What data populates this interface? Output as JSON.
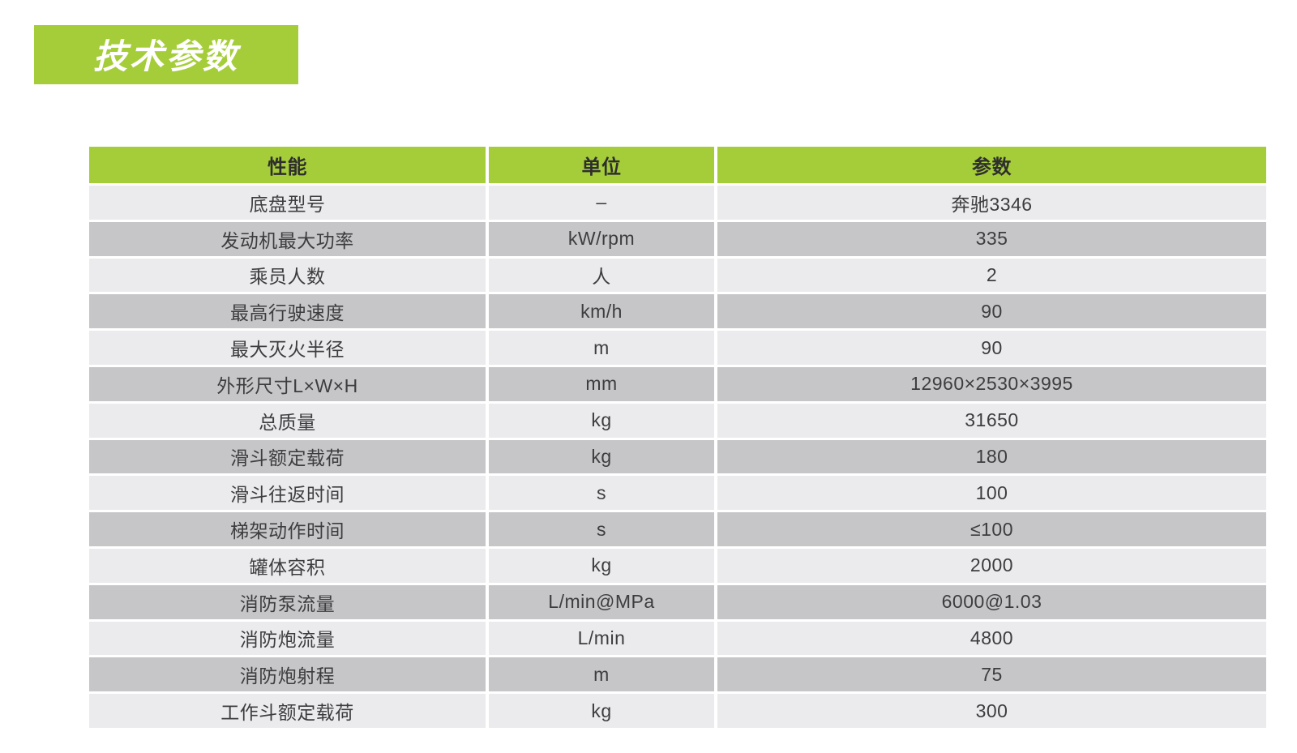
{
  "page": {
    "title": "技术参数"
  },
  "colors": {
    "accent_green": "#a5cd39",
    "row_light": "#ebebed",
    "row_dark": "#c6c6c8",
    "header_text": "#2e2e2e",
    "body_text": "#3d3d3f",
    "title_text": "#ffffff"
  },
  "table": {
    "headers": [
      "性能",
      "单位",
      "参数"
    ],
    "rows": [
      {
        "name": "底盘型号",
        "unit": "–",
        "value": "奔驰3346"
      },
      {
        "name": "发动机最大功率",
        "unit": "kW/rpm",
        "value": "335"
      },
      {
        "name": "乘员人数",
        "unit": "人",
        "value": "2"
      },
      {
        "name": "最高行驶速度",
        "unit": "km/h",
        "value": "90"
      },
      {
        "name": "最大灭火半径",
        "unit": "m",
        "value": "90"
      },
      {
        "name": "外形尺寸L×W×H",
        "unit": "mm",
        "value": "12960×2530×3995"
      },
      {
        "name": "总质量",
        "unit": "kg",
        "value": "31650"
      },
      {
        "name": "滑斗额定载荷",
        "unit": "kg",
        "value": "180"
      },
      {
        "name": "滑斗往返时间",
        "unit": "s",
        "value": "100"
      },
      {
        "name": "梯架动作时间",
        "unit": "s",
        "value": "≤100"
      },
      {
        "name": "罐体容积",
        "unit": "kg",
        "value": "2000"
      },
      {
        "name": "消防泵流量",
        "unit": "L/min@MPa",
        "value": "6000@1.03"
      },
      {
        "name": "消防炮流量",
        "unit": "L/min",
        "value": "4800"
      },
      {
        "name": "消防炮射程",
        "unit": "m",
        "value": "75"
      },
      {
        "name": "工作斗额定载荷",
        "unit": "kg",
        "value": "300"
      }
    ]
  }
}
